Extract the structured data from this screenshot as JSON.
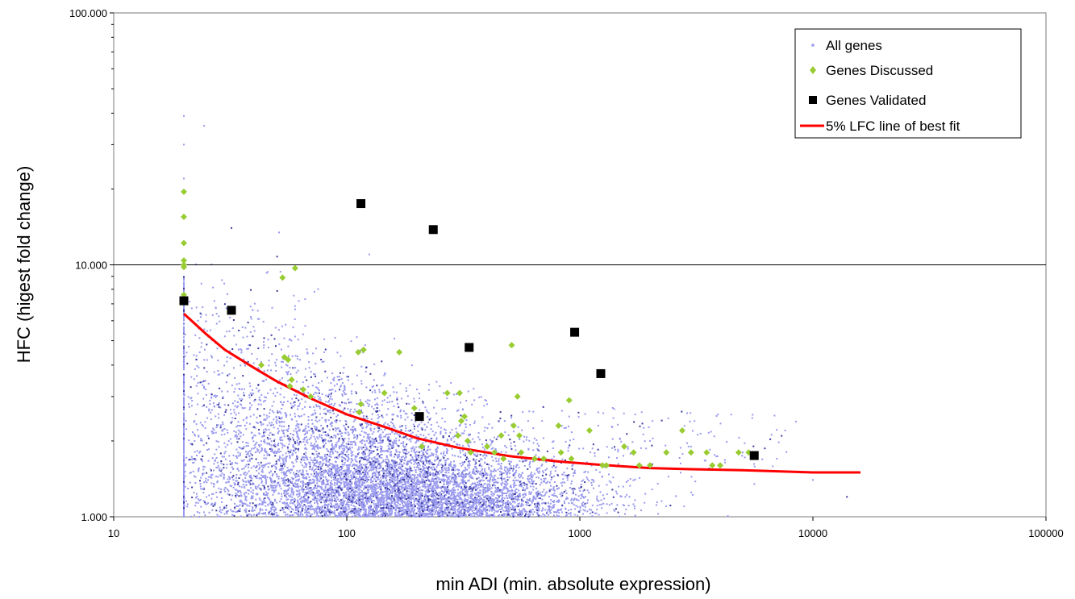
{
  "chart_data": {
    "type": "scatter",
    "title": "",
    "xlabel": "min ADI (min. absolute expression)",
    "ylabel": "HFC (higest fold change)",
    "x_scale": "log",
    "y_scale": "log",
    "xlim": [
      10,
      100000
    ],
    "ylim": [
      1,
      100
    ],
    "x_ticks": [
      10,
      100,
      1000,
      10000,
      100000
    ],
    "x_tick_labels": [
      "10",
      "100",
      "1000",
      "10000",
      "100000"
    ],
    "y_ticks": [
      1,
      10,
      100
    ],
    "y_tick_labels": [
      "1.000",
      "10.000",
      "100.000"
    ],
    "grid": "major horizontal gridline at 10",
    "legend_position": "top-right",
    "legend": [
      "All genes",
      "Genes Discussed",
      "Genes Validated",
      "5% LFC line of best fit"
    ],
    "colors": {
      "all_genes": "#9999ee",
      "all_genes_dark": "#3a3aa0",
      "genes_discussed": "#99cc33",
      "genes_validated": "#000000",
      "fit_line": "#ff0000"
    },
    "series": [
      {
        "name": "All genes",
        "marker": "small dot",
        "note": "dense cloud of roughly 8000 points spanning min ADI 20 to 15000 and HFC 1 to 40, concentrated near HFC 1-2",
        "points": [
          [
            20,
            39
          ],
          [
            20,
            30
          ],
          [
            20,
            22
          ],
          [
            32,
            14
          ],
          [
            125,
            11
          ],
          [
            20,
            8
          ],
          [
            23,
            6
          ],
          [
            26,
            5.5
          ],
          [
            30,
            5.2
          ],
          [
            38,
            4.8
          ],
          [
            50,
            4.2
          ],
          [
            65,
            5.3
          ],
          [
            80,
            4.5
          ],
          [
            100,
            3.6
          ],
          [
            120,
            4.8
          ],
          [
            160,
            5.1
          ],
          [
            200,
            3.2
          ],
          [
            280,
            3.4
          ],
          [
            400,
            2.8
          ],
          [
            600,
            2.4
          ],
          [
            900,
            2.5
          ],
          [
            1200,
            2.3
          ],
          [
            2000,
            2.0
          ],
          [
            3000,
            1.9
          ],
          [
            5000,
            1.8
          ],
          [
            7000,
            1.7
          ],
          [
            10000,
            1.4
          ],
          [
            14000,
            1.2
          ]
        ]
      },
      {
        "name": "Genes Discussed",
        "marker": "green diamond",
        "points": [
          [
            20,
            19.5
          ],
          [
            20,
            15.5
          ],
          [
            20,
            12.2
          ],
          [
            20,
            10.4
          ],
          [
            20,
            10.0
          ],
          [
            20,
            9.8
          ],
          [
            20,
            7.6
          ],
          [
            53,
            8.9
          ],
          [
            60,
            9.7
          ],
          [
            43,
            4.0
          ],
          [
            54,
            4.3
          ],
          [
            56,
            4.2
          ],
          [
            58,
            3.5
          ],
          [
            57,
            3.3
          ],
          [
            65,
            3.2
          ],
          [
            70,
            3.0
          ],
          [
            112,
            4.5
          ],
          [
            118,
            4.6
          ],
          [
            115,
            2.8
          ],
          [
            113,
            2.6
          ],
          [
            145,
            3.1
          ],
          [
            168,
            4.5
          ],
          [
            195,
            2.7
          ],
          [
            210,
            1.9
          ],
          [
            270,
            3.1
          ],
          [
            305,
            3.1
          ],
          [
            310,
            2.4
          ],
          [
            320,
            2.5
          ],
          [
            300,
            2.1
          ],
          [
            330,
            2.0
          ],
          [
            340,
            1.8
          ],
          [
            400,
            1.9
          ],
          [
            430,
            1.8
          ],
          [
            460,
            2.1
          ],
          [
            470,
            1.7
          ],
          [
            510,
            4.8
          ],
          [
            520,
            2.3
          ],
          [
            540,
            3.0
          ],
          [
            550,
            2.1
          ],
          [
            560,
            1.8
          ],
          [
            640,
            1.7
          ],
          [
            700,
            1.7
          ],
          [
            810,
            2.3
          ],
          [
            830,
            1.8
          ],
          [
            900,
            2.9
          ],
          [
            920,
            1.7
          ],
          [
            1100,
            2.2
          ],
          [
            1250,
            1.6
          ],
          [
            1300,
            1.6
          ],
          [
            1550,
            1.9
          ],
          [
            1700,
            1.8
          ],
          [
            1800,
            1.6
          ],
          [
            2000,
            1.6
          ],
          [
            2350,
            1.8
          ],
          [
            2750,
            2.2
          ],
          [
            3000,
            1.8
          ],
          [
            3500,
            1.8
          ],
          [
            3700,
            1.6
          ],
          [
            4000,
            1.6
          ],
          [
            4800,
            1.8
          ],
          [
            5300,
            1.8
          ]
        ]
      },
      {
        "name": "Genes Validated",
        "marker": "black square",
        "points": [
          [
            20,
            7.2
          ],
          [
            32,
            6.6
          ],
          [
            115,
            17.5
          ],
          [
            235,
            13.8
          ],
          [
            205,
            2.5
          ],
          [
            335,
            4.7
          ],
          [
            950,
            5.4
          ],
          [
            1230,
            3.7
          ],
          [
            5600,
            1.75
          ]
        ]
      },
      {
        "name": "5% LFC line of best fit",
        "marker": "red line",
        "points": [
          [
            20,
            6.4
          ],
          [
            25,
            5.3
          ],
          [
            30,
            4.6
          ],
          [
            40,
            3.9
          ],
          [
            50,
            3.45
          ],
          [
            70,
            2.95
          ],
          [
            100,
            2.55
          ],
          [
            150,
            2.25
          ],
          [
            200,
            2.05
          ],
          [
            300,
            1.88
          ],
          [
            500,
            1.74
          ],
          [
            800,
            1.66
          ],
          [
            1200,
            1.61
          ],
          [
            2000,
            1.56
          ],
          [
            3000,
            1.545
          ],
          [
            5000,
            1.53
          ],
          [
            10000,
            1.5
          ],
          [
            16000,
            1.5
          ]
        ]
      }
    ]
  }
}
